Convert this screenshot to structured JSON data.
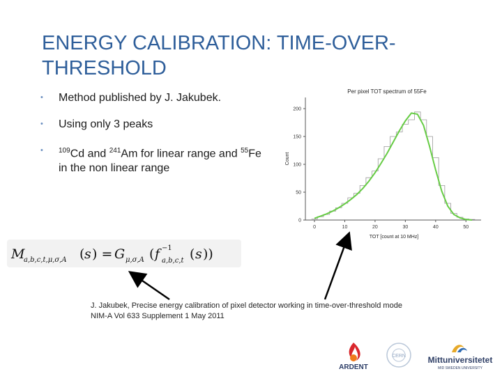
{
  "slide": {
    "title": "ENERGY CALIBRATION: TIME-OVER-THRESHOLD",
    "bullets": {
      "b1": "Method published by J. Jakubek.",
      "b2": "Using only 3 peaks",
      "b3": {
        "sup_cd": "109",
        "cd_text": "Cd and ",
        "sup_am": "241",
        "am_text": "Am for linear range and ",
        "sup_fe": "55",
        "fe_text": "Fe in the non linear range"
      }
    },
    "reference": {
      "line1": "J. Jakubek, Precise energy calibration of pixel detector working in time-over-threshold mode",
      "line2": "NIM-A Vol 633 Supplement 1 May 2011"
    },
    "logos": {
      "ardent": "ARDENT",
      "cern": "CERN",
      "miun_name": "Mittuniversitetet",
      "miun_sub": "MID SWEDEN UNIVERSITY"
    },
    "colors": {
      "title": "#2e5e9a",
      "fit_curve": "#66cc44",
      "histogram": "#999999"
    }
  },
  "chart_data": {
    "type": "line",
    "title": "Per pixel TOT spectrum of 55Fe",
    "xlabel": "TOT [count at 10 MHz]",
    "ylabel": "Count",
    "xlim": [
      -3,
      55
    ],
    "ylim": [
      0,
      220
    ],
    "x_ticks": [
      0,
      10,
      20,
      30,
      40,
      50
    ],
    "y_ticks": [
      0,
      50,
      100,
      150,
      200
    ],
    "grid": false,
    "series": [
      {
        "kind": "histogram",
        "x": [
          0,
          2,
          4,
          6,
          8,
          10,
          12,
          14,
          16,
          18,
          20,
          22,
          24,
          26,
          28,
          30,
          32,
          34,
          36,
          38,
          40,
          42,
          44,
          46,
          48,
          50,
          52
        ],
        "values": [
          2,
          6,
          10,
          16,
          22,
          30,
          40,
          48,
          62,
          76,
          88,
          110,
          132,
          150,
          158,
          172,
          180,
          194,
          180,
          150,
          112,
          62,
          30,
          12,
          5,
          2,
          1
        ]
      },
      {
        "kind": "fit",
        "x": [
          0,
          2,
          4,
          6,
          8,
          10,
          12,
          14,
          16,
          18,
          20,
          22,
          24,
          26,
          28,
          30,
          32,
          34,
          36,
          38,
          40,
          42,
          44,
          46,
          48,
          50,
          52
        ],
        "values": [
          3,
          7,
          11,
          16,
          22,
          29,
          37,
          46,
          57,
          70,
          85,
          102,
          120,
          140,
          160,
          178,
          192,
          190,
          170,
          132,
          90,
          52,
          25,
          10,
          4,
          1,
          0
        ]
      }
    ]
  }
}
